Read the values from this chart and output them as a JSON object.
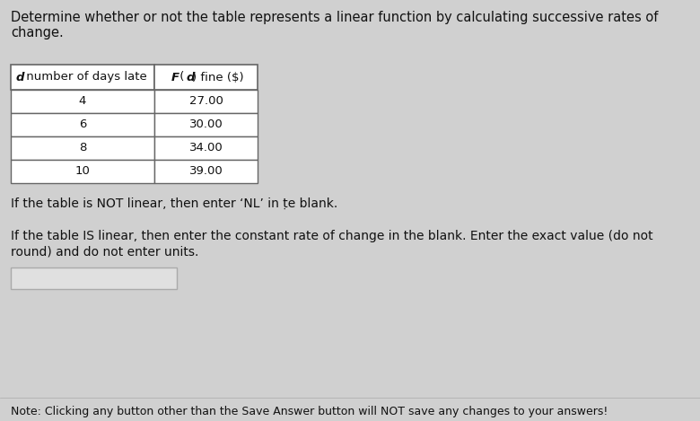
{
  "bg_color": "#d0d0d0",
  "title_lines": [
    "Determine whether or not the table represents a linear function by calculating successive rates of",
    "change."
  ],
  "col1_header": " number of days late",
  "col1_header_d": "d",
  "col2_header_parts": [
    "F",
    " (",
    "d",
    ") fine ($)"
  ],
  "table_data": [
    [
      "4",
      "27.00"
    ],
    [
      "6",
      "30.00"
    ],
    [
      "8",
      "34.00"
    ],
    [
      "10",
      "39.00"
    ]
  ],
  "para1": "If the table is NOT linear, then enter ‘NL’ in ṭe blank.",
  "para2_line1": "If the table IS linear, then enter the constant rate of change in the blank. Enter the exact value (do not",
  "para2_line2": "round) and do not enter units.",
  "note": "Note: Clicking any button other than the Save Answer button will NOT save any changes to your answers!",
  "text_color": "#111111",
  "table_border_color": "#666666",
  "table_row_bg": "#ffffff",
  "table_header_bg": "#ffffff",
  "input_box_bg": "#e0e0e0",
  "font_size_title": 10.5,
  "font_size_table": 9.5,
  "font_size_para": 10,
  "font_size_note": 9
}
